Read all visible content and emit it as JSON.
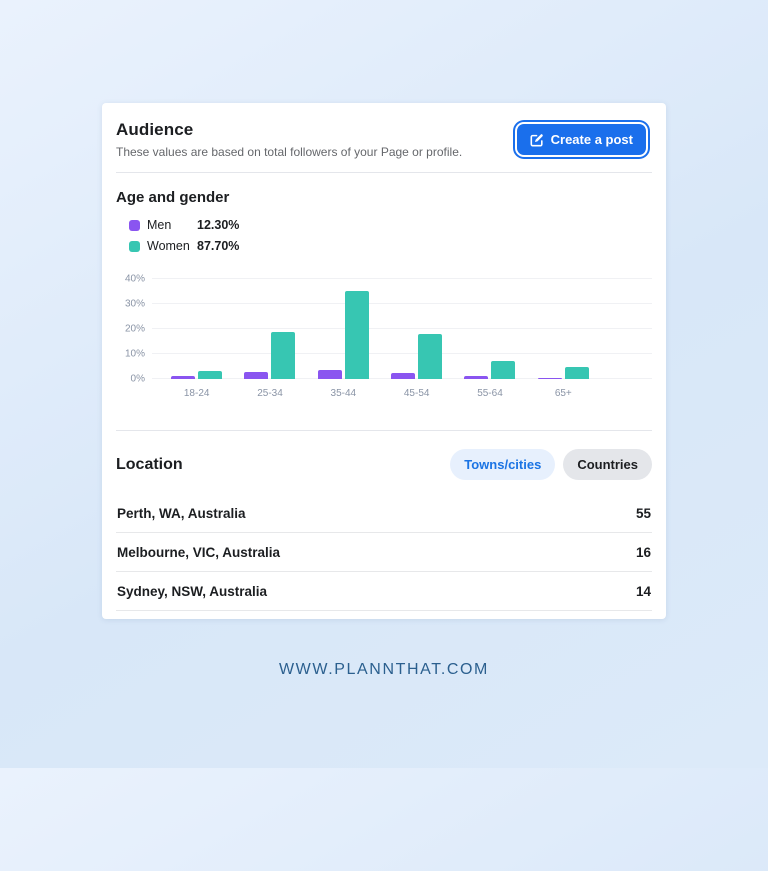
{
  "header": {
    "title": "Audience",
    "subtitle": "These values are based on total followers of your Page or profile.",
    "create_post_label": "Create a post"
  },
  "colors": {
    "men": "#8A55F0",
    "women": "#37C6B2",
    "primary_button": "#1A6FEC",
    "active_pill_bg": "#E7F0FD",
    "active_pill_text": "#1B74E4",
    "inactive_pill_bg": "#E4E6EA",
    "footer_text": "#2B5F8E"
  },
  "age_gender": {
    "title": "Age and gender",
    "legend": [
      {
        "label": "Men",
        "value": "12.30%",
        "color": "#8A55F0"
      },
      {
        "label": "Women",
        "value": "87.70%",
        "color": "#37C6B2"
      }
    ]
  },
  "chart_data": {
    "type": "bar",
    "title": "Age and gender",
    "categories": [
      "18-24",
      "25-34",
      "35-44",
      "45-54",
      "55-64",
      "65+"
    ],
    "series": [
      {
        "name": "Men",
        "color": "#8A55F0",
        "values": [
          1.4,
          3.0,
          3.6,
          2.5,
          1.2,
          0.5
        ],
        "total": "12.30%"
      },
      {
        "name": "Women",
        "color": "#37C6B2",
        "values": [
          3.3,
          19.0,
          35.3,
          17.9,
          7.2,
          5.0
        ],
        "total": "87.70%"
      }
    ],
    "xlabel": "",
    "ylabel": "",
    "ylim": [
      0,
      40
    ],
    "y_ticks": [
      "0%",
      "10%",
      "20%",
      "30%",
      "40%"
    ],
    "grid": true,
    "legend_position": "top-left"
  },
  "location": {
    "title": "Location",
    "tabs": [
      {
        "label": "Towns/cities",
        "active": true
      },
      {
        "label": "Countries",
        "active": false
      }
    ],
    "rows": [
      {
        "name": "Perth, WA, Australia",
        "value": "55"
      },
      {
        "name": "Melbourne, VIC, Australia",
        "value": "16"
      },
      {
        "name": "Sydney, NSW, Australia",
        "value": "14"
      }
    ]
  },
  "footer": {
    "text": "WWW.PLANNTHAT.COM"
  }
}
